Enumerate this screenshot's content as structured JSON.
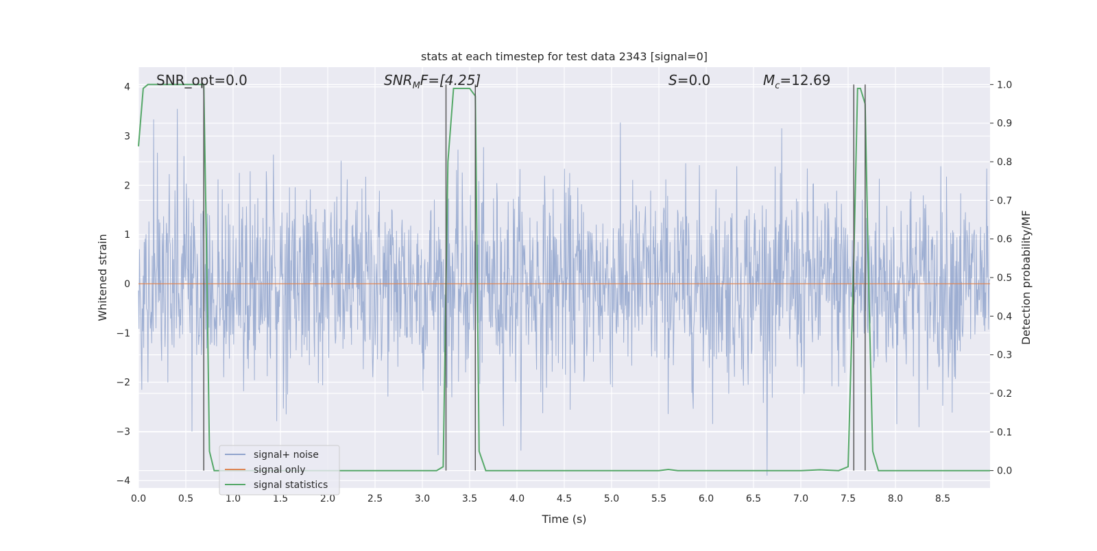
{
  "chart_data": {
    "type": "line",
    "title": "stats at each timestep for test data 2343 [signal=0]",
    "xlabel": "Time (s)",
    "ylabel_left": "Whitened strain",
    "ylabel_right": "Detection probability/MF",
    "xlim": [
      0.0,
      9.0
    ],
    "ylim_left": [
      -4.15,
      4.4
    ],
    "ylim_right": [
      -0.045,
      1.045
    ],
    "x_ticks": [
      "0.0",
      "0.5",
      "1.0",
      "1.5",
      "2.0",
      "2.5",
      "3.0",
      "3.5",
      "4.0",
      "4.5",
      "5.0",
      "5.5",
      "6.0",
      "6.5",
      "7.0",
      "7.5",
      "8.0",
      "8.5"
    ],
    "y_ticks_left": [
      "4",
      "3",
      "2",
      "1",
      "0",
      "−1",
      "−2",
      "−3",
      "−4"
    ],
    "y_ticks_right": [
      "1.0",
      "0.9",
      "0.8",
      "0.7",
      "0.6",
      "0.5",
      "0.4",
      "0.3",
      "0.2",
      "0.1",
      "0.0"
    ],
    "grid": true,
    "legend_position": "lower-left",
    "annotations": {
      "snr_opt": "SNR_opt=0.0",
      "snr_mf_base": "SNR",
      "snr_mf_sub": "M",
      "snr_mf_rest": "F=[4.25]",
      "s_sym": "S",
      "s_val": "=0.0",
      "mc_sym": "M",
      "mc_sub": "c",
      "mc_val": "=12.69"
    },
    "series": [
      {
        "name": "signal+ noise",
        "axis": "left",
        "color": "#8fa3cc",
        "description_values": "whitened strain noise, roughly within ±2 with spikes to ±4 over 0–9 s",
        "envelope_sigma": 1.0
      },
      {
        "name": "signal only",
        "axis": "left",
        "color": "#dd8452",
        "x": [
          0.0,
          9.0
        ],
        "y": [
          0.0,
          0.0
        ]
      },
      {
        "name": "signal statistics",
        "axis": "right",
        "color": "#55a868",
        "x": [
          0.0,
          0.05,
          0.1,
          0.2,
          0.4,
          0.6,
          0.69,
          0.72,
          0.75,
          0.8,
          0.9,
          1.5,
          2.0,
          2.5,
          3.0,
          3.15,
          3.22,
          3.27,
          3.33,
          3.4,
          3.5,
          3.56,
          3.6,
          3.67,
          3.75,
          4.5,
          5.0,
          5.5,
          5.6,
          5.7,
          6.0,
          7.0,
          7.2,
          7.4,
          7.5,
          7.56,
          7.6,
          7.63,
          7.68,
          7.72,
          7.76,
          7.82,
          8.0,
          8.5,
          9.0
        ],
        "y": [
          0.84,
          0.99,
          1.0,
          1.0,
          1.0,
          1.0,
          1.0,
          0.55,
          0.05,
          0.0,
          0.0,
          0.0,
          0.0,
          0.0,
          0.0,
          0.0,
          0.01,
          0.8,
          0.99,
          0.99,
          0.99,
          0.97,
          0.05,
          0.0,
          0.0,
          0.0,
          0.0,
          0.0,
          0.003,
          0.0,
          0.0,
          0.0,
          0.002,
          0.0,
          0.01,
          0.55,
          0.99,
          0.99,
          0.95,
          0.45,
          0.05,
          0.0,
          0.0,
          0.0,
          0.0
        ]
      }
    ],
    "vertical_markers_x": [
      0.69,
      3.25,
      3.56,
      7.56,
      7.68
    ]
  }
}
